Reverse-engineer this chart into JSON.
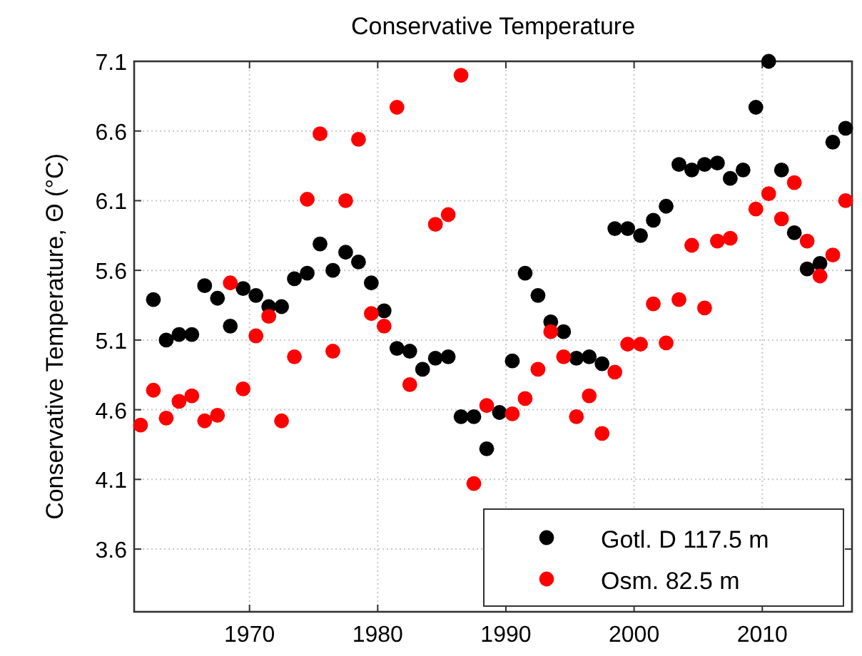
{
  "chart_data": {
    "type": "scatter",
    "title": "Conservative Temperature",
    "ylabel": "Conservative Temperature,  Θ (°C)",
    "x": [
      1961.5,
      1962.5,
      1963.5,
      1964.5,
      1965.5,
      1966.5,
      1967.5,
      1968.5,
      1969.5,
      1970.5,
      1971.5,
      1972.5,
      1973.5,
      1974.5,
      1975.5,
      1976.5,
      1977.5,
      1978.5,
      1979.5,
      1980.5,
      1981.5,
      1982.5,
      1983.5,
      1984.5,
      1985.5,
      1986.5,
      1987.5,
      1988.5,
      1989.5,
      1990.5,
      1991.5,
      1992.5,
      1993.5,
      1994.5,
      1995.5,
      1996.5,
      1997.5,
      1998.5,
      1999.5,
      2000.5,
      2001.5,
      2002.5,
      2003.5,
      2004.5,
      2005.5,
      2006.5,
      2007.5,
      2008.5,
      2009.5,
      2010.5,
      2011.5,
      2012.5,
      2013.5,
      2014.5,
      2015.5,
      2016.5
    ],
    "series": [
      {
        "name": "Gotl. D 117.5 m",
        "color": "#000000",
        "values": [
          null,
          5.39,
          5.1,
          5.14,
          5.14,
          5.49,
          5.4,
          5.2,
          5.47,
          5.42,
          5.34,
          5.34,
          5.54,
          5.58,
          5.79,
          5.6,
          5.73,
          5.66,
          5.51,
          5.31,
          5.04,
          5.02,
          4.89,
          4.97,
          4.98,
          4.55,
          4.55,
          4.32,
          4.58,
          4.95,
          5.58,
          5.42,
          5.23,
          5.16,
          4.97,
          4.98,
          4.93,
          5.9,
          5.9,
          5.85,
          5.96,
          6.06,
          6.36,
          6.32,
          6.36,
          6.37,
          6.26,
          6.32,
          6.77,
          7.1,
          6.32,
          5.87,
          5.61,
          5.65,
          6.52,
          6.62
        ]
      },
      {
        "name": "Osm. 82.5 m",
        "color": "#ff0000",
        "values": [
          4.49,
          4.74,
          4.54,
          4.66,
          4.7,
          4.52,
          4.56,
          5.51,
          4.75,
          5.13,
          5.27,
          4.52,
          4.98,
          6.11,
          6.58,
          5.02,
          6.1,
          6.54,
          5.29,
          5.2,
          6.77,
          4.78,
          null,
          5.93,
          6.0,
          7.0,
          4.07,
          4.63,
          null,
          4.57,
          4.68,
          4.89,
          5.16,
          4.98,
          4.55,
          4.7,
          4.43,
          4.87,
          5.07,
          5.07,
          5.36,
          5.08,
          5.39,
          5.78,
          5.33,
          5.81,
          5.83,
          null,
          6.04,
          6.15,
          5.97,
          6.23,
          5.81,
          5.56,
          5.71,
          6.1
        ]
      }
    ],
    "xlim": [
      1961,
      2017
    ],
    "xticks": [
      1970,
      1980,
      1990,
      2000,
      2010
    ],
    "ylim": [
      3.15,
      7.1
    ],
    "yticks": [
      3.6,
      4.1,
      4.6,
      5.1,
      5.6,
      6.1,
      6.6,
      7.1
    ],
    "grid": true,
    "legend": "bottom right",
    "marker": "circle"
  }
}
